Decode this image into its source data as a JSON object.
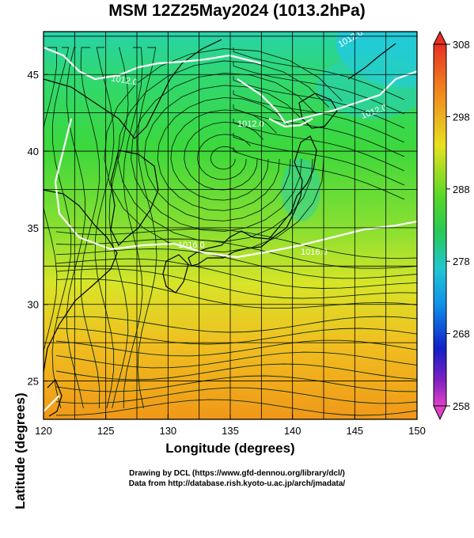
{
  "title": "MSM 12Z25May2024 (1013.2hPa)",
  "xlabel": "Longitude (degrees)",
  "ylabel": "Latitude  (degrees)",
  "credits": [
    "Drawing by DCL (https://www.gfd-dennou.org/library/dcl/)",
    "Data from http://database.rish.kyoto-u.ac.jp/arch/jmadata/"
  ],
  "map": {
    "lon_range": [
      120,
      150
    ],
    "lat_range": [
      22.5,
      47.8
    ],
    "x_ticks": [
      "120",
      "125",
      "130",
      "135",
      "140",
      "145",
      "150"
    ],
    "y_ticks": [
      "25",
      "30",
      "35",
      "40",
      "45"
    ],
    "contour_labels": [
      "1012.0",
      "1012.0",
      "1012.0",
      "1016.0",
      "1016.0",
      "1012.0"
    ]
  },
  "colorbar": {
    "ticks": [
      "308",
      "298",
      "288",
      "278",
      "268",
      "258"
    ],
    "range": [
      258,
      308
    ]
  },
  "colors": {
    "cold": "#1ec8ff",
    "cool": "#2ad8a0",
    "mild": "#38d838",
    "warm": "#c8e828",
    "hot": "#f0b020",
    "hottest": "#f08c10"
  }
}
